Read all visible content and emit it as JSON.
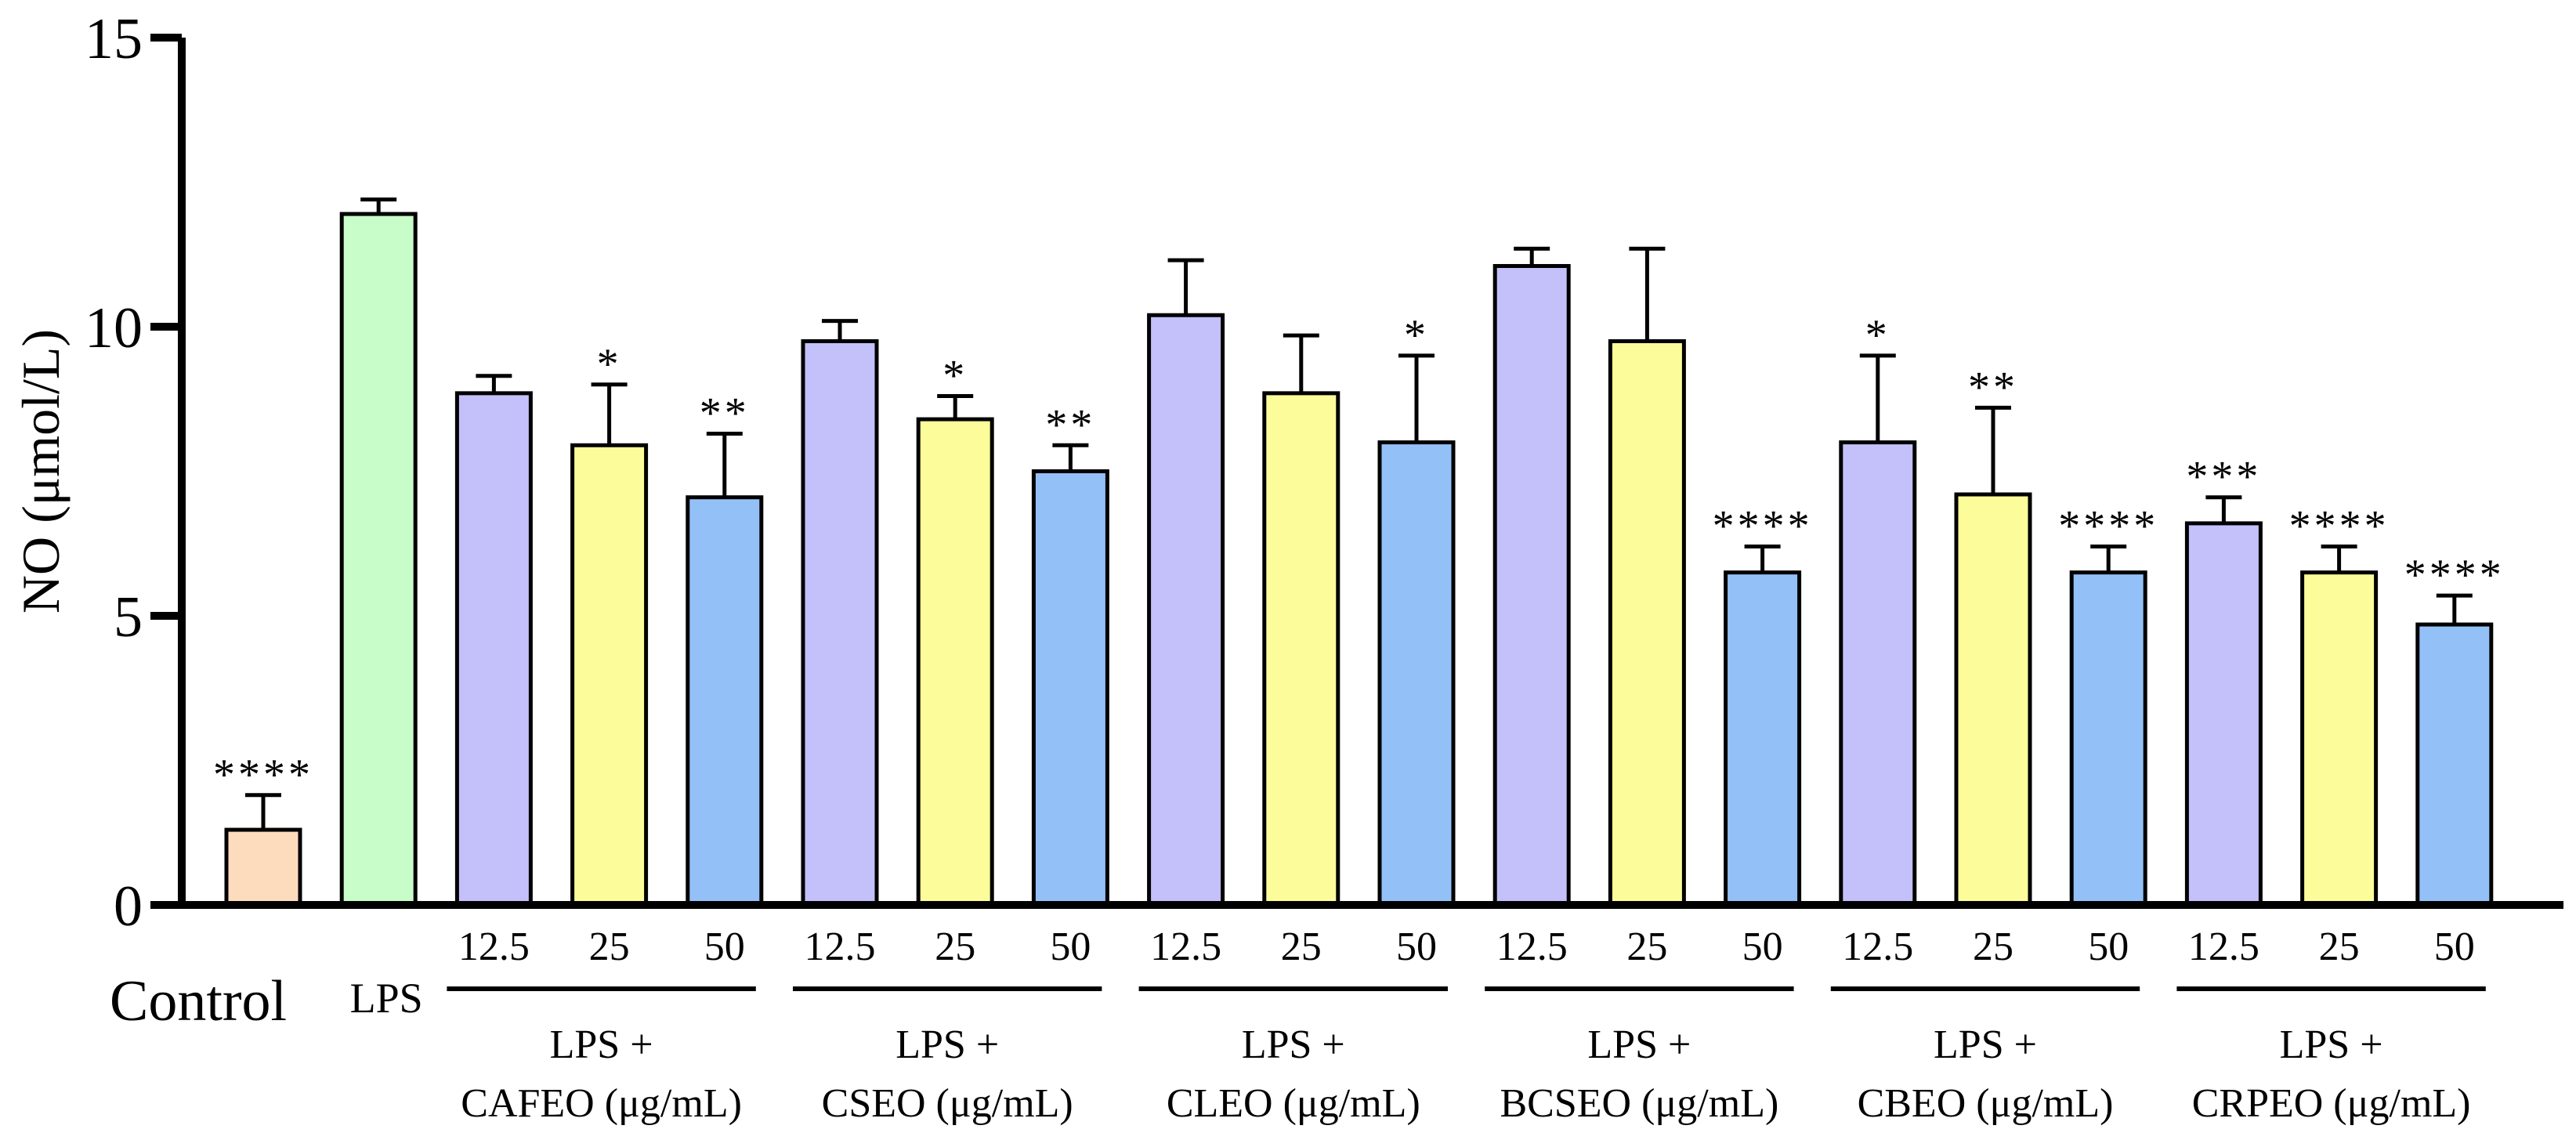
{
  "chart_data": {
    "type": "bar",
    "ylabel": "NO (μmol/L)",
    "ylim": [
      0,
      15
    ],
    "yticks": [
      0,
      5,
      10,
      15
    ],
    "colors": {
      "control": "#FDDCBE",
      "lps": "#C8FCC8",
      "dose_12_5": "#C3C0FA",
      "dose_25": "#FCFC9A",
      "dose_50": "#93C1F7"
    },
    "bars": [
      {
        "label": "Control",
        "value": 1.3,
        "error": 0.6,
        "sig": "****",
        "color_key": "control"
      },
      {
        "label": "LPS",
        "value": 11.95,
        "error": 0.25,
        "sig": "",
        "color_key": "lps"
      },
      {
        "label": "12.5",
        "value": 8.85,
        "error": 0.3,
        "sig": "",
        "color_key": "dose_12_5"
      },
      {
        "label": "25",
        "value": 7.95,
        "error": 1.05,
        "sig": "*",
        "color_key": "dose_25"
      },
      {
        "label": "50",
        "value": 7.05,
        "error": 1.1,
        "sig": "**",
        "color_key": "dose_50"
      },
      {
        "label": "12.5",
        "value": 9.75,
        "error": 0.35,
        "sig": "",
        "color_key": "dose_12_5"
      },
      {
        "label": "25",
        "value": 8.4,
        "error": 0.4,
        "sig": "*",
        "color_key": "dose_25"
      },
      {
        "label": "50",
        "value": 7.5,
        "error": 0.45,
        "sig": "**",
        "color_key": "dose_50"
      },
      {
        "label": "12.5",
        "value": 10.2,
        "error": 0.95,
        "sig": "",
        "color_key": "dose_12_5"
      },
      {
        "label": "25",
        "value": 8.85,
        "error": 1.0,
        "sig": "",
        "color_key": "dose_25"
      },
      {
        "label": "50",
        "value": 8.0,
        "error": 1.5,
        "sig": "*",
        "color_key": "dose_50"
      },
      {
        "label": "12.5",
        "value": 11.05,
        "error": 0.3,
        "sig": "",
        "color_key": "dose_12_5"
      },
      {
        "label": "25",
        "value": 9.75,
        "error": 1.6,
        "sig": "",
        "color_key": "dose_25"
      },
      {
        "label": "50",
        "value": 5.75,
        "error": 0.45,
        "sig": "****",
        "color_key": "dose_50"
      },
      {
        "label": "12.5",
        "value": 8.0,
        "error": 1.5,
        "sig": "*",
        "color_key": "dose_12_5"
      },
      {
        "label": "25",
        "value": 7.1,
        "error": 1.5,
        "sig": "**",
        "color_key": "dose_25"
      },
      {
        "label": "50",
        "value": 5.75,
        "error": 0.45,
        "sig": "****",
        "color_key": "dose_50"
      },
      {
        "label": "12.5",
        "value": 6.6,
        "error": 0.45,
        "sig": "***",
        "color_key": "dose_12_5"
      },
      {
        "label": "25",
        "value": 5.75,
        "error": 0.45,
        "sig": "****",
        "color_key": "dose_25"
      },
      {
        "label": "50",
        "value": 4.85,
        "error": 0.5,
        "sig": "****",
        "color_key": "dose_50"
      }
    ],
    "groups": [
      {
        "line1": "LPS +",
        "line2": "CAFEO (μg/mL)",
        "bar_indices": [
          2,
          3,
          4
        ]
      },
      {
        "line1": "LPS +",
        "line2": "CSEO (μg/mL)",
        "bar_indices": [
          5,
          6,
          7
        ]
      },
      {
        "line1": "LPS +",
        "line2": "CLEO (μg/mL)",
        "bar_indices": [
          8,
          9,
          10
        ]
      },
      {
        "line1": "LPS +",
        "line2": "BCSEO (μg/mL)",
        "bar_indices": [
          11,
          12,
          13
        ]
      },
      {
        "line1": "LPS +",
        "line2": "CBEO (μg/mL)",
        "bar_indices": [
          14,
          15,
          16
        ]
      },
      {
        "line1": "LPS +",
        "line2": "CRPEO (μg/mL)",
        "bar_indices": [
          17,
          18,
          19
        ]
      }
    ]
  }
}
